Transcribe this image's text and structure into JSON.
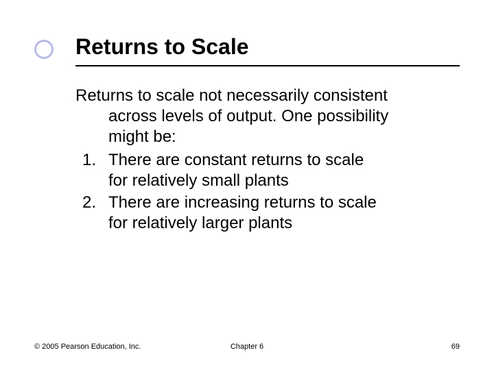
{
  "slide": {
    "title": "Returns to Scale",
    "intro_line1": "Returns to scale not necessarily consistent",
    "intro_line2": "across levels of output. One possibility",
    "intro_line3": "might be:",
    "items": [
      {
        "num": "1.",
        "line1": "There are constant returns to scale",
        "line2": "for relatively small plants"
      },
      {
        "num": "2.",
        "line1": "There are increasing returns to scale",
        "line2": "for relatively larger plants"
      }
    ]
  },
  "footer": {
    "copyright": "© 2005 Pearson Education, Inc.",
    "chapter": "Chapter 6",
    "page": "69"
  },
  "colors": {
    "bullet_ring": "#b9b9e8",
    "text": "#000000",
    "background": "#ffffff"
  },
  "typography": {
    "title_fontsize": 32,
    "body_fontsize": 24,
    "footer_fontsize": 11,
    "font_family": "Arial"
  }
}
